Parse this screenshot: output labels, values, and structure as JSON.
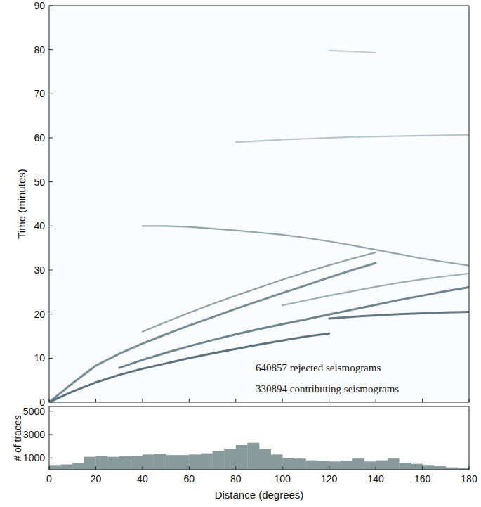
{
  "chart_data": [
    {
      "type": "line",
      "y_label": "Time (minutes)",
      "annotations": [
        "640857 rejected seismograms",
        "330894 contributing seismograms"
      ],
      "x": [
        0,
        10,
        20,
        30,
        40,
        50,
        60,
        70,
        80,
        90,
        100,
        110,
        120,
        130,
        140,
        150,
        160,
        170,
        180
      ],
      "xlim": [
        0,
        180
      ],
      "xticks": [
        0,
        20,
        40,
        60,
        80,
        100,
        120,
        140,
        160,
        180
      ],
      "ylim": [
        0,
        90
      ],
      "yticks": [
        0,
        10,
        20,
        30,
        40,
        50,
        60,
        70,
        80,
        90
      ],
      "tick_labels": "y",
      "series": [
        {
          "color": "#3e5866",
          "values": [
            0,
            2.4,
            4.5,
            6.2,
            7.6,
            8.8,
            10.0,
            11.1,
            12.1,
            13.1,
            14.0,
            14.9,
            15.6,
            null,
            null,
            null,
            null,
            null,
            null
          ]
        },
        {
          "color": "#4a6270",
          "values": [
            null,
            null,
            null,
            null,
            null,
            null,
            null,
            null,
            null,
            null,
            null,
            null,
            19.0,
            19.4,
            19.7,
            20.0,
            20.2,
            20.4,
            20.5
          ]
        },
        {
          "color": "#55707e",
          "values": [
            null,
            null,
            null,
            7.8,
            9.6,
            11.2,
            12.7,
            14.1,
            15.4,
            16.6,
            17.7,
            18.8,
            19.9,
            21.0,
            22.1,
            23.2,
            24.2,
            25.2,
            26.1
          ]
        },
        {
          "color": "#5e7886",
          "values": [
            0,
            4.3,
            8.3,
            11.0,
            13.3,
            15.4,
            17.4,
            19.3,
            21.2,
            23.0,
            24.8,
            26.5,
            28.3,
            30.0,
            31.6,
            null,
            null,
            null,
            null
          ]
        },
        {
          "color": "#7a909c",
          "values": [
            null,
            null,
            null,
            null,
            16.0,
            18.2,
            20.3,
            22.3,
            24.2,
            26.0,
            27.8,
            29.5,
            31.1,
            32.6,
            34.0,
            null,
            null,
            null,
            null
          ]
        },
        {
          "color": "#8aa0ab",
          "values": [
            null,
            null,
            null,
            null,
            null,
            null,
            null,
            null,
            null,
            null,
            22.0,
            23.1,
            24.2,
            25.2,
            26.2,
            27.1,
            27.9,
            28.6,
            29.2
          ]
        },
        {
          "color": "#7f95a1",
          "values": [
            null,
            null,
            null,
            null,
            40.0,
            40.0,
            39.8,
            39.4,
            39.0,
            38.5,
            38.0,
            37.3,
            36.5,
            35.6,
            34.6,
            33.6,
            32.6,
            31.8,
            31.0
          ]
        },
        {
          "color": "#aabac3",
          "values": [
            null,
            null,
            null,
            null,
            null,
            null,
            null,
            null,
            59.0,
            59.3,
            59.6,
            59.8,
            60.0,
            60.2,
            60.3,
            60.4,
            60.5,
            60.6,
            60.7
          ]
        },
        {
          "color": "#b5c4cc",
          "values": [
            null,
            null,
            null,
            null,
            null,
            null,
            null,
            null,
            null,
            null,
            null,
            null,
            79.8,
            79.6,
            79.3,
            null,
            null,
            null,
            null
          ]
        }
      ]
    },
    {
      "type": "histogram",
      "x_label": "Distance (degrees)",
      "y_label": "# of traces",
      "color": "#879a9c",
      "bins": [
        0,
        5,
        10,
        15,
        20,
        25,
        30,
        35,
        40,
        45,
        50,
        55,
        60,
        65,
        70,
        75,
        80,
        85,
        90,
        95,
        100,
        105,
        110,
        115,
        120,
        125,
        130,
        135,
        140,
        145,
        150,
        155,
        160,
        165,
        170,
        175,
        180
      ],
      "values": [
        400,
        450,
        600,
        1100,
        1200,
        1100,
        1150,
        1200,
        1300,
        1350,
        1250,
        1250,
        1300,
        1400,
        1600,
        1800,
        2100,
        2300,
        1800,
        1300,
        1000,
        950,
        800,
        750,
        700,
        750,
        950,
        700,
        800,
        950,
        600,
        500,
        400,
        300,
        200,
        150
      ],
      "xlim": [
        0,
        180
      ],
      "xticks": [
        0,
        20,
        40,
        60,
        80,
        100,
        120,
        140,
        160,
        180
      ],
      "ylim": [
        0,
        5400
      ],
      "yticks": [
        1000,
        3000,
        5000
      ]
    }
  ]
}
